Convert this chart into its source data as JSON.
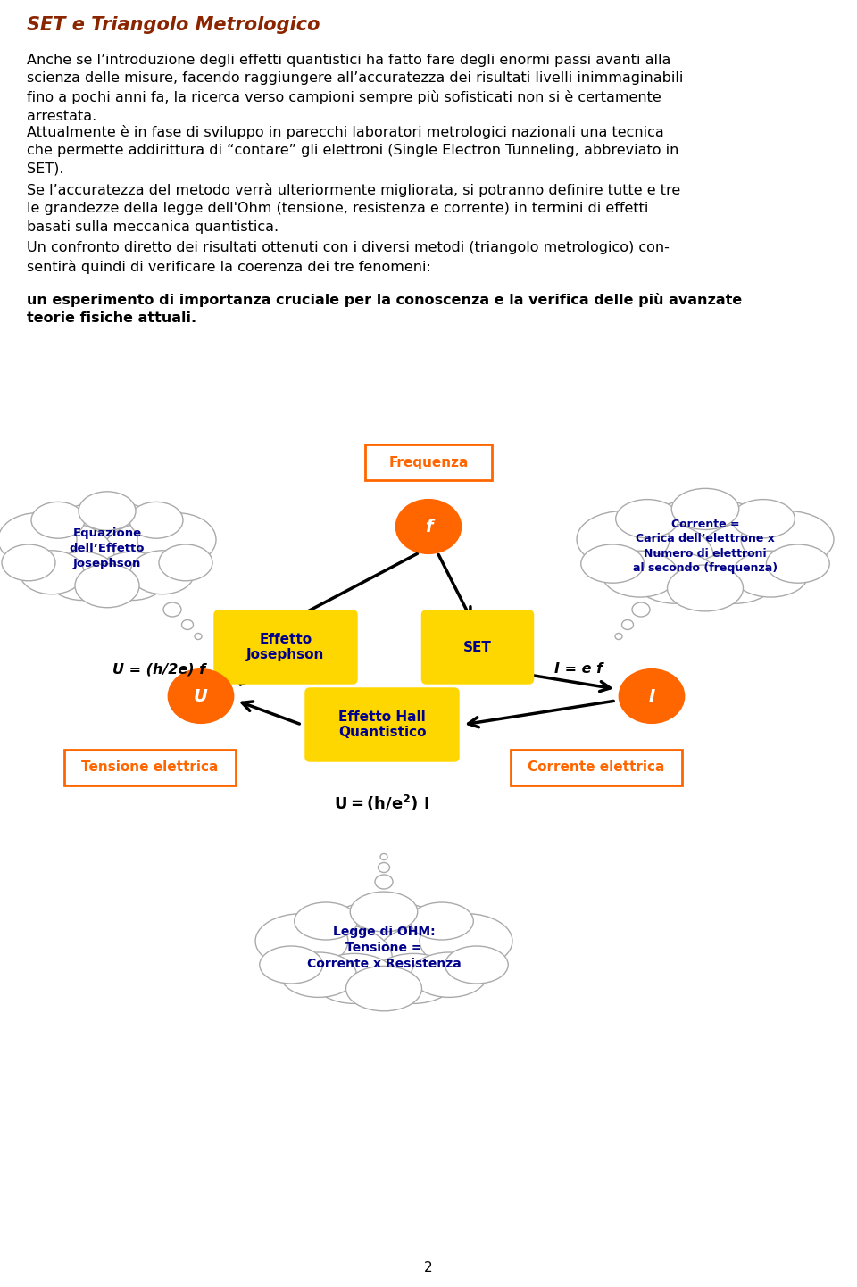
{
  "title": "SET e Triangolo Metrologico",
  "title_color": "#8B2500",
  "page_bg": "#ffffff",
  "body_text_color": "#000000",
  "body_font_size": 11.5,
  "cloud_left_text": "Equazione\ndell’Effetto\nJosephson",
  "cloud_right_text": "Corrente =\nCarica dell’elettrone x\nNumero di elettroni\nal secondo (frequenza)",
  "cloud_bottom_text": "Legge di OHM:\nTensione =\nCorrente x Resistenza",
  "cloud_text_color": "#00008B",
  "node_color": "#FF6600",
  "box_color": "#FFD700",
  "box_text_color": "#00008B",
  "label_color": "#FF6600",
  "page_number": "2"
}
